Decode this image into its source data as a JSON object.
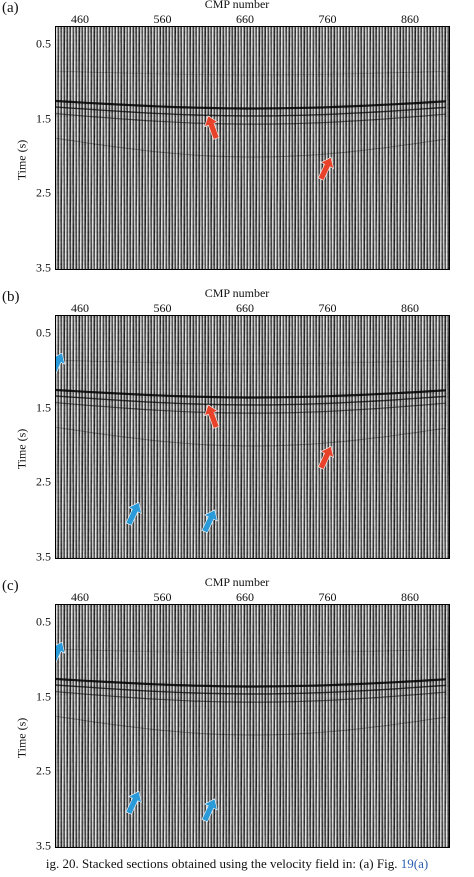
{
  "figure": {
    "x_axis_title": "CMP number",
    "x_ticks": [
      "460",
      "560",
      "660",
      "760",
      "860"
    ],
    "y_axis_title": "Time (s)",
    "y_ticks": [
      "0.5",
      "1.5",
      "2.5",
      "3.5"
    ],
    "panels": [
      {
        "label": "(a)",
        "arrows": [
          {
            "color": "red",
            "cmp": 619,
            "time": 1.6
          },
          {
            "color": "red",
            "cmp": 757,
            "time": 2.15
          }
        ]
      },
      {
        "label": "(b)",
        "arrows": [
          {
            "color": "blue",
            "cmp": 431,
            "time": 0.9
          },
          {
            "color": "red",
            "cmp": 619,
            "time": 1.6
          },
          {
            "color": "red",
            "cmp": 757,
            "time": 2.15
          },
          {
            "color": "blue",
            "cmp": 524,
            "time": 2.9
          },
          {
            "color": "blue",
            "cmp": 616,
            "time": 3.0
          }
        ]
      },
      {
        "label": "(c)",
        "arrows": [
          {
            "color": "blue",
            "cmp": 431,
            "time": 0.9
          },
          {
            "color": "blue",
            "cmp": 524,
            "time": 2.9
          },
          {
            "color": "blue",
            "cmp": 616,
            "time": 3.0
          }
        ]
      }
    ],
    "colors": {
      "red_arrow": "#e8432a",
      "blue_arrow": "#2a9ad8"
    }
  },
  "caption": {
    "prefix": "ig. 20.   Stacked sections obtained using the velocity field in: (a) Fig. ",
    "ref": "19(a)"
  }
}
